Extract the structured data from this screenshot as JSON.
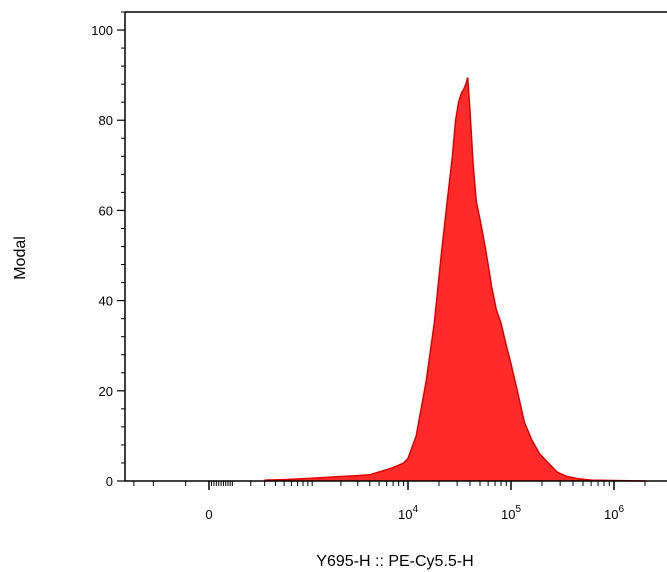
{
  "chart_data": {
    "type": "area",
    "title": "",
    "xlabel": "Y695-H :: PE-Cy5.5-H",
    "ylabel": "Modal",
    "x_scale": "biexponential",
    "xlim": [
      -1000,
      2000000
    ],
    "ylim": [
      0,
      104
    ],
    "grid": false,
    "legend": "none",
    "color": "#ff2a2a",
    "stroke_color": "#e00000",
    "y_ticks": [
      0,
      20,
      40,
      60,
      80,
      100
    ],
    "y_tick_labels": [
      "0",
      "20",
      "40",
      "60",
      "80",
      "100"
    ],
    "x_ticks": [
      {
        "value": 0,
        "label": "0"
      },
      {
        "value": 10000,
        "base": "10",
        "exp": "4"
      },
      {
        "value": 100000,
        "base": "10",
        "exp": "5"
      },
      {
        "value": 1000000,
        "base": "10",
        "exp": "6"
      }
    ],
    "series": [
      {
        "x": [
          300,
          500,
          1000,
          2000,
          3000,
          4000,
          5000,
          6000,
          7000,
          8000,
          9000,
          10000,
          12000,
          15000,
          18000,
          21000,
          24000,
          27000,
          29000,
          31000,
          33000,
          35000,
          36500,
          38000,
          40000,
          43000,
          46000,
          50000,
          55000,
          60000,
          65000,
          72000,
          80000,
          90000,
          100000,
          115000,
          135000,
          160000,
          190000,
          230000,
          280000,
          350000,
          450000,
          600000,
          2000000
        ],
        "y": [
          0.2,
          0.3,
          0.6,
          1.0,
          1.2,
          1.4,
          2.0,
          2.5,
          3.0,
          3.5,
          4.0,
          5.0,
          10,
          22,
          35,
          50,
          62,
          72,
          80,
          84,
          86,
          87,
          88,
          89.5,
          82,
          70,
          62,
          58,
          53,
          48,
          43,
          38,
          35,
          30,
          26,
          20,
          13,
          9,
          6,
          4,
          2,
          1,
          0.5,
          0.2,
          0
        ]
      }
    ]
  }
}
